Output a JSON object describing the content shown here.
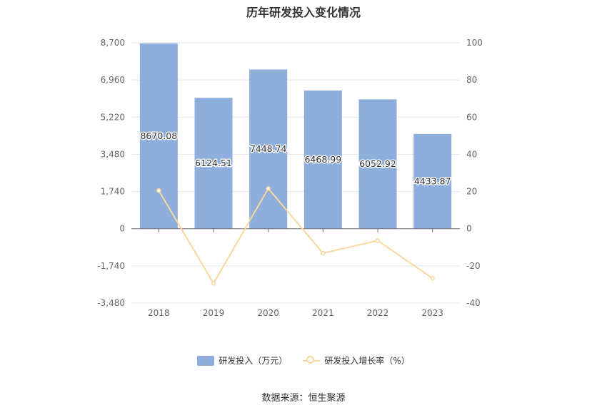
{
  "chart_data": {
    "type": "bar",
    "title": "历年研发投入变化情况",
    "categories": [
      "2018",
      "2019",
      "2020",
      "2021",
      "2022",
      "2023"
    ],
    "series": [
      {
        "name": "研发投入（万元）",
        "type": "bar",
        "axis": "left",
        "values": [
          8670.08,
          6124.51,
          7448.74,
          6468.99,
          6052.92,
          4433.87
        ],
        "labels": [
          "8670.08",
          "6124.51",
          "7448.74",
          "6468.99",
          "6052.92",
          "4433.87"
        ],
        "color": "#8eaedb"
      },
      {
        "name": "研发投入增长率（%）",
        "type": "line",
        "axis": "right",
        "values": [
          20.5,
          -29.4,
          21.6,
          -13.2,
          -6.4,
          -26.7
        ],
        "color": "#fad7a0"
      }
    ],
    "y_left": {
      "ylim": [
        -3480,
        8700
      ],
      "ticks": [
        8700,
        6960,
        5220,
        3480,
        1740,
        0,
        -1740,
        -3480
      ],
      "tick_labels": [
        "8,700",
        "6,960",
        "5,220",
        "3,480",
        "1,740",
        "0",
        "-1,740",
        "-3,480"
      ]
    },
    "y_right": {
      "ylim": [
        -40,
        100
      ],
      "ticks": [
        100,
        80,
        60,
        40,
        20,
        0,
        -20,
        -40
      ],
      "tick_labels": [
        "100",
        "80",
        "60",
        "40",
        "20",
        "0",
        "-20",
        "-40"
      ]
    },
    "grid": true,
    "legend_position": "bottom",
    "source": "数据来源：恒生聚源"
  }
}
